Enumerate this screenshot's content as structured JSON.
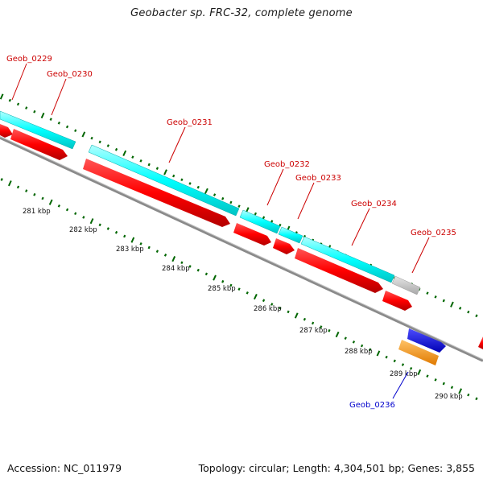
{
  "title": "Geobacter sp. FRC-32, complete genome",
  "footer": {
    "accession": "Accession: NC_011979",
    "topology": "Topology: circular; Length: 4,304,501 bp; Genes: 3,855"
  },
  "colors": {
    "background": "#ffffff",
    "backbone": "#888888",
    "cds": "#ff0000",
    "gene_feature": "#00ffff",
    "pseudo_feature": "#c8c8c8",
    "rna_gene": "#0000ff",
    "rna_feature": "#ff9900",
    "tick": "#006600",
    "label_red": "#cc0000",
    "label_blue": "#0000cc"
  },
  "kbp_labels": [
    "281 kbp",
    "282 kbp",
    "283 kbp",
    "284 kbp",
    "285 kbp",
    "286 kbp",
    "287 kbp",
    "288 kbp",
    "289 kbp",
    "290 kbp"
  ],
  "gene_labels": [
    {
      "name": "Geob_0229",
      "color": "#cc0000"
    },
    {
      "name": "Geob_0230",
      "color": "#cc0000"
    },
    {
      "name": "Geob_0231",
      "color": "#cc0000"
    },
    {
      "name": "Geob_0232",
      "color": "#cc0000"
    },
    {
      "name": "Geob_0233",
      "color": "#cc0000"
    },
    {
      "name": "Geob_0234",
      "color": "#cc0000"
    },
    {
      "name": "Geob_0235",
      "color": "#cc0000"
    },
    {
      "name": "Geob_0236",
      "color": "#0000cc"
    }
  ]
}
